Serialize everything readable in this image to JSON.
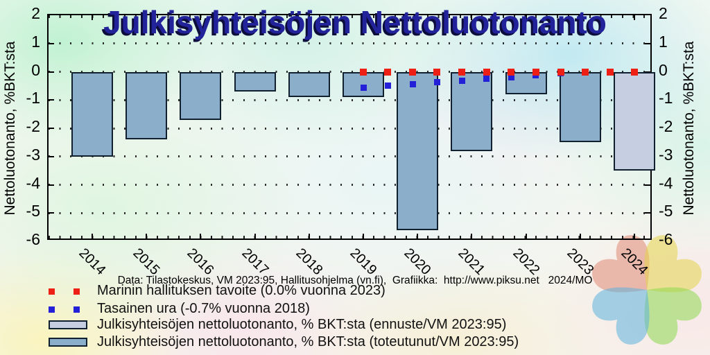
{
  "title": "Julkisyhteisöjen Nettoluotonanto",
  "axes": {
    "y_label": "Nettoluotonanto, %BKT:sta",
    "y_ticks": [
      "2",
      "1",
      "0",
      "-1",
      "-2",
      "-3",
      "-4",
      "-5",
      "-6"
    ],
    "x_ticks": [
      "2014",
      "2015",
      "2016",
      "2017",
      "2018",
      "2019",
      "2020",
      "2021",
      "2022",
      "2023",
      "2024"
    ]
  },
  "source_line": "Data: Tilastokeskus, VM 2023:95, Hallitusohjelma (vn.fi),  Grafiikka:  http://www.piksu.net   2024/MO",
  "legend": {
    "items": [
      {
        "label": "Marinin hallituksen tavoite (0.0% vuonna 2023)",
        "marker": "squares",
        "color": "#ee2015"
      },
      {
        "label": "Tasainen ura (-0.7% vuonna 2018)",
        "marker": "squares",
        "color": "#2420d8"
      },
      {
        "label": "Julkisyhteisöjen nettoluotonanto, % BKT:sta (ennuste/VM 2023:95)",
        "marker": "bar",
        "color": "#c6cfe2"
      },
      {
        "label": "Julkisyhteisöjen nettoluotonanto, % BKT:sta (toteutunut/VM 2023:95)",
        "marker": "bar",
        "color": "#8bafca"
      }
    ]
  },
  "watermark": {
    "name": "four-petal-clover",
    "petals": [
      {
        "color": "#e08a76",
        "angle": -45
      },
      {
        "color": "#e3d34a",
        "angle": 45
      },
      {
        "color": "#8cd84e",
        "angle": 135
      },
      {
        "color": "#5cb2dc",
        "angle": -135
      }
    ],
    "opacity": 0.55
  },
  "chart_data": {
    "type": "bar",
    "title": "Julkisyhteisöjen Nettoluotonanto",
    "ylabel": "Nettoluotonanto, %BKT:sta",
    "ylim": [
      -6,
      2
    ],
    "grid": true,
    "categories": [
      2014,
      2015,
      2016,
      2017,
      2018,
      2019,
      2020,
      2021,
      2022,
      2023,
      2024
    ],
    "bar_values": [
      -3.0,
      -2.4,
      -1.7,
      -0.7,
      -0.9,
      -0.9,
      -5.6,
      -2.8,
      -0.8,
      -2.5,
      -3.5
    ],
    "bar_kind": [
      "toteutunut",
      "toteutunut",
      "toteutunut",
      "toteutunut",
      "toteutunut",
      "toteutunut",
      "toteutunut",
      "toteutunut",
      "toteutunut",
      "toteutunut",
      "ennuste"
    ],
    "bar_colors": {
      "toteutunut": "#8bafca",
      "ennuste": "#c6cfe2"
    },
    "series": [
      {
        "name": "Marinin hallituksen tavoite (0.0% vuonna 2023)",
        "marker": "square",
        "color": "#ee2015",
        "size": 10,
        "x": [
          2019,
          2019.45,
          2019.91,
          2020.36,
          2020.82,
          2021.27,
          2021.73,
          2022.18,
          2022.64,
          2023.09,
          2023.55,
          2024
        ],
        "values": [
          0,
          0,
          0,
          0,
          0,
          0,
          0,
          0,
          0,
          0,
          0,
          0
        ]
      },
      {
        "name": "Tasainen ura (-0.7% vuonna 2018)",
        "marker": "square",
        "color": "#2420d8",
        "size": 9,
        "x": [
          2019,
          2019.45,
          2019.91,
          2020.36,
          2020.82,
          2021.27,
          2021.73,
          2022.18,
          2022.64,
          2023.09,
          2023.55,
          2024
        ],
        "values": [
          -0.56,
          -0.5,
          -0.44,
          -0.38,
          -0.31,
          -0.25,
          -0.19,
          -0.12,
          -0.06,
          0,
          0,
          0
        ]
      }
    ]
  }
}
